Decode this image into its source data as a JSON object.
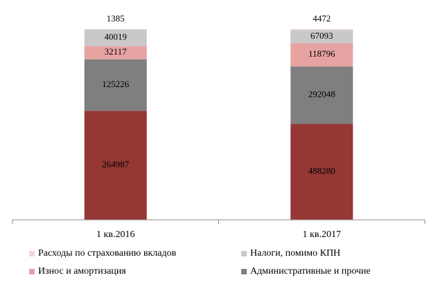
{
  "chart_data": {
    "type": "bar",
    "stacked": "percent",
    "categories": [
      "1 кв.2016",
      "1 кв.2017"
    ],
    "series": [
      {
        "name": null,
        "color": "#953735",
        "values": [
          264987,
          488280
        ]
      },
      {
        "name": "Административные и прочие",
        "color": "#7f7f7f",
        "values": [
          125226,
          292048
        ]
      },
      {
        "name": "Износ и амортизация",
        "color": "#e6a3a2",
        "values": [
          32117,
          118796
        ]
      },
      {
        "name": "Налоги, помимо КПН",
        "color": "#c9c9c9",
        "values": [
          40019,
          67093
        ]
      },
      {
        "name": "Расходы по страхованию вкладов",
        "color": "#f2d6d5",
        "values": [
          1385,
          4472
        ]
      }
    ],
    "legend": "bottom"
  }
}
